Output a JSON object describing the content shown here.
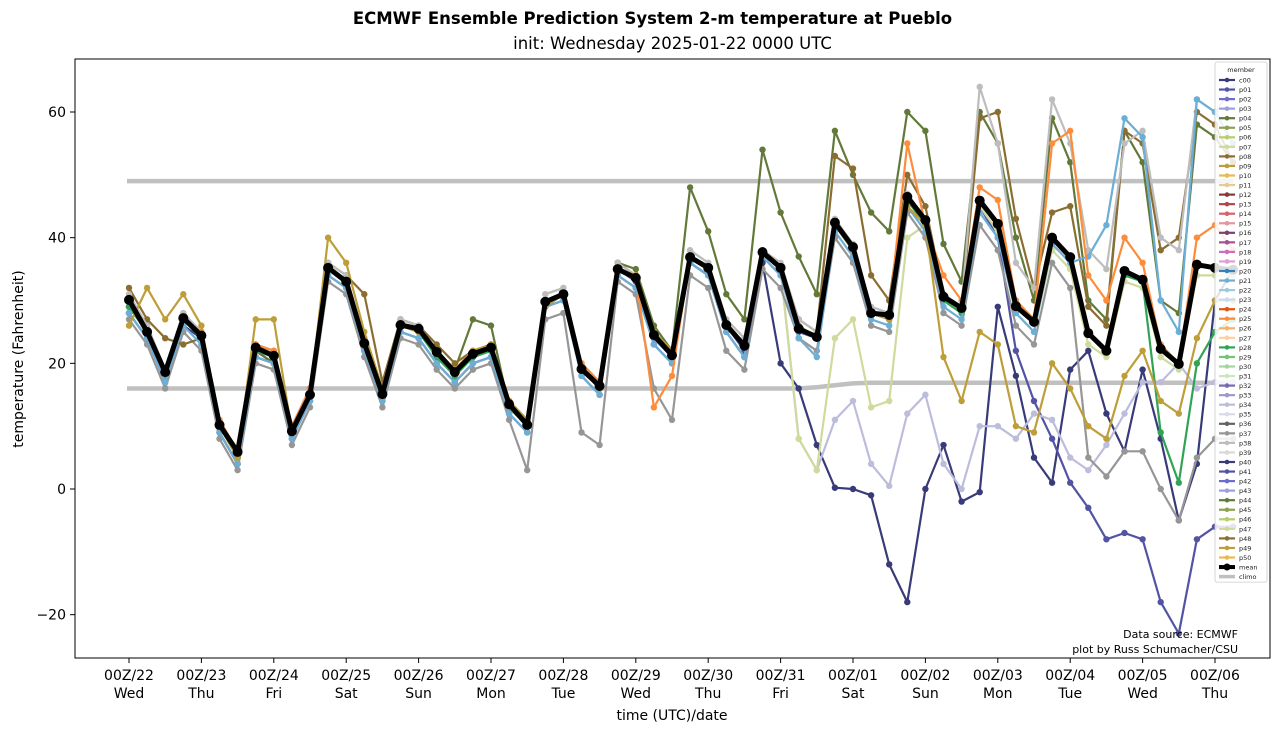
{
  "title": "ECMWF Ensemble Prediction System 2-m temperature at Pueblo",
  "subtitle": "init: Wednesday 2025-01-22 0000 UTC",
  "credits": [
    "Data source: ECMWF",
    "plot by Russ Schumacher/CSU"
  ],
  "chart_data": {
    "type": "line",
    "title": "ECMWF Ensemble Prediction System 2-m temperature at Pueblo",
    "subtitle": "init: Wednesday 2025-01-22 0000 UTC",
    "xlabel": "time (UTC)/date",
    "ylabel": "temperature (Fahrenheit)",
    "ylim": [
      -27,
      68.5
    ],
    "xlim_hours": [
      -38,
      383
    ],
    "time_step_hours": 6,
    "yticks": [
      -20,
      0,
      20,
      40,
      60
    ],
    "ytick_labels": [
      "−20",
      "0",
      "20",
      "40",
      "60"
    ],
    "xticks": [
      {
        "line1": "00Z/22",
        "line2": "Wed"
      },
      {
        "line1": "00Z/23",
        "line2": "Thu"
      },
      {
        "line1": "00Z/24",
        "line2": "Fri"
      },
      {
        "line1": "00Z/25",
        "line2": "Sat"
      },
      {
        "line1": "00Z/26",
        "line2": "Sun"
      },
      {
        "line1": "00Z/27",
        "line2": "Mon"
      },
      {
        "line1": "00Z/28",
        "line2": "Tue"
      },
      {
        "line1": "00Z/29",
        "line2": "Wed"
      },
      {
        "line1": "00Z/30",
        "line2": "Thu"
      },
      {
        "line1": "00Z/31",
        "line2": "Fri"
      },
      {
        "line1": "00Z/01",
        "line2": "Sat"
      },
      {
        "line1": "00Z/02",
        "line2": "Sun"
      },
      {
        "line1": "00Z/03",
        "line2": "Mon"
      },
      {
        "line1": "00Z/04",
        "line2": "Tue"
      },
      {
        "line1": "00Z/05",
        "line2": "Wed"
      },
      {
        "line1": "00Z/06",
        "line2": "Thu"
      }
    ],
    "grid": false,
    "legend": {
      "title": "member",
      "placement": "right",
      "entries": [
        "c00",
        "p01",
        "p02",
        "p03",
        "p04",
        "p05",
        "p06",
        "p07",
        "p08",
        "p09",
        "p10",
        "p11",
        "p12",
        "p13",
        "p14",
        "p15",
        "p16",
        "p17",
        "p18",
        "p19",
        "p20",
        "p21",
        "p22",
        "p23",
        "p24",
        "p25",
        "p26",
        "p27",
        "p28",
        "p29",
        "p30",
        "p31",
        "p32",
        "p33",
        "p34",
        "p35",
        "p36",
        "p37",
        "p38",
        "p39",
        "p40",
        "p41",
        "p42",
        "p43",
        "p44",
        "p45",
        "p46",
        "p47",
        "p48",
        "p49",
        "p50",
        "mean",
        "climo"
      ]
    },
    "member_colors": [
      "#393b79",
      "#5254a3",
      "#6b6ecf",
      "#9c9ede",
      "#637939",
      "#8ca252",
      "#b5cf6b",
      "#cedb9c",
      "#8c6d31",
      "#bd9e39",
      "#e7ba52",
      "#e7cb94",
      "#843c39",
      "#ad494a",
      "#d6616b",
      "#e7969c",
      "#7b4173",
      "#a55194",
      "#ce6dbd",
      "#de9ed6",
      "#3182bd",
      "#6baed6",
      "#9ecae1",
      "#c6dbef",
      "#e6550d",
      "#fd8d3c",
      "#fdae6b",
      "#fdd0a2",
      "#31a354",
      "#74c476",
      "#a1d99b",
      "#c7e9c0",
      "#756bb1",
      "#9e9ac8",
      "#bcbddc",
      "#dadaeb",
      "#636363",
      "#969696",
      "#bdbdbd",
      "#d9d9d9",
      "#393b79",
      "#5254a3",
      "#6b6ecf",
      "#9c9ede",
      "#637939",
      "#8ca252",
      "#b5cf6b",
      "#cedb9c",
      "#8c6d31",
      "#bd9e39",
      "#e7ba52"
    ],
    "mean_color": "#000000",
    "climo_color": "#c0c0c0",
    "series": [
      {
        "name": "mean",
        "values": [
          30.1,
          25.0,
          18.6,
          27.2,
          24.4,
          10.2,
          5.9,
          22.5,
          21.2,
          9.2,
          15.0,
          35.2,
          33.0,
          23.2,
          15.1,
          26.1,
          25.5,
          21.8,
          18.6,
          21.5,
          22.5,
          13.5,
          10.2,
          29.8,
          31.0,
          19.1,
          16.4,
          35.0,
          33.6,
          24.5,
          21.3,
          36.9,
          35.2,
          26.1,
          22.8,
          37.7,
          35.2,
          25.5,
          24.2,
          42.4,
          38.5,
          28.0,
          27.7,
          46.5,
          42.8,
          30.6,
          28.8,
          45.9,
          42.2,
          29.1,
          26.6,
          40.0,
          36.9,
          24.8,
          22.0,
          34.7,
          33.3,
          22.3,
          19.9,
          35.7,
          35.2,
          34.9
        ]
      },
      {
        "name": "climo_high",
        "values": [
          49.0,
          49.0,
          49.0,
          49.0,
          49.0,
          49.0,
          49.0,
          49.0,
          49.0,
          49.0,
          49.0,
          49.0,
          49.0,
          49.0,
          49.0,
          49.0,
          49.0,
          49.0,
          49.0,
          49.0,
          49.0,
          49.0,
          49.0,
          49.0,
          49.0,
          49.0,
          49.0,
          49.0,
          49.0,
          49.0,
          49.0,
          49.0,
          49.0,
          49.0,
          49.0,
          49.0,
          49.0,
          49.0,
          49.0,
          49.0,
          49.0,
          49.0,
          49.0,
          49.0,
          49.0,
          49.0,
          49.0,
          49.0,
          49.0,
          49.0,
          49.0,
          49.0,
          49.0,
          49.0,
          49.0,
          49.0,
          49.0,
          49.0,
          49.0,
          49.0,
          49.0,
          49.0
        ]
      },
      {
        "name": "climo_low",
        "values": [
          16.0,
          16.0,
          16.0,
          16.0,
          16.0,
          16.0,
          16.0,
          16.0,
          16.0,
          16.0,
          16.0,
          16.0,
          16.0,
          16.0,
          16.0,
          16.0,
          16.0,
          16.0,
          16.0,
          16.0,
          16.0,
          16.0,
          16.0,
          16.0,
          16.0,
          16.0,
          16.0,
          16.0,
          16.0,
          16.0,
          16.0,
          16.0,
          16.0,
          16.0,
          16.0,
          16.0,
          16.0,
          16.0,
          16.2,
          16.5,
          16.8,
          16.9,
          16.9,
          16.9,
          16.9,
          16.9,
          16.9,
          16.9,
          16.9,
          16.9,
          16.9,
          16.9,
          16.9,
          16.9,
          16.9,
          16.9,
          16.9,
          16.9,
          16.9,
          16.9,
          16.9,
          16.9
        ]
      },
      {
        "name": "c00",
        "values": [
          28,
          24,
          17,
          26,
          24,
          9,
          4,
          21,
          20,
          8,
          14,
          34,
          32,
          22,
          14,
          25,
          24,
          20,
          17,
          20,
          21,
          12,
          9,
          29,
          30,
          18,
          15,
          34,
          32,
          23,
          20,
          36,
          34,
          25,
          21,
          36,
          20,
          16,
          7,
          0.2,
          0,
          -1,
          -12,
          -18,
          0,
          7,
          -2,
          -0.5,
          29,
          18,
          5,
          1,
          19,
          22,
          12,
          6,
          19,
          8,
          -5,
          4,
          30,
          35
        ]
      },
      {
        "name": "p41",
        "values": [
          29,
          25,
          18,
          27,
          24,
          10,
          5,
          22,
          20,
          9,
          15,
          35,
          33,
          23,
          15,
          26,
          25,
          21,
          18,
          21,
          22,
          13,
          10,
          29,
          31,
          19,
          16,
          35,
          33,
          24,
          21,
          36,
          34,
          26,
          22,
          37,
          34,
          25,
          24,
          42,
          38,
          28,
          27,
          46,
          42,
          30,
          28,
          45,
          40,
          22,
          14,
          8,
          1,
          -3,
          -8,
          -7,
          -8,
          -18,
          -23,
          -8,
          -6,
          -6
        ]
      },
      {
        "name": "p34",
        "values": [
          30,
          26,
          19,
          27,
          25,
          11,
          6,
          23,
          22,
          10,
          16,
          35,
          33,
          24,
          16,
          26,
          25,
          22,
          19,
          22,
          23,
          14,
          11,
          30,
          31,
          20,
          17,
          35,
          34,
          25,
          22,
          37,
          35,
          26,
          23,
          38,
          35,
          8,
          3,
          11,
          14,
          4,
          0.5,
          12,
          15,
          4,
          0,
          10,
          10,
          8,
          12,
          11,
          5,
          3,
          7,
          12,
          17,
          17,
          20,
          16,
          17,
          17
        ]
      },
      {
        "name": "p07",
        "values": [
          31,
          26,
          19,
          28,
          25,
          11,
          6,
          23,
          21,
          10,
          15,
          36,
          34,
          24,
          16,
          27,
          26,
          22,
          19,
          22,
          23,
          14,
          11,
          31,
          32,
          20,
          17,
          36,
          34,
          25,
          22,
          38,
          36,
          27,
          24,
          38,
          35,
          8,
          3,
          24,
          27,
          13,
          14,
          40,
          42,
          30,
          28,
          45,
          41,
          28,
          25,
          38,
          35,
          23,
          21,
          33,
          32,
          21,
          19,
          34,
          34,
          34
        ]
      },
      {
        "name": "p04",
        "values": [
          29,
          25,
          18,
          27,
          24,
          10,
          5,
          22,
          20,
          9,
          15,
          35,
          33,
          23,
          15,
          26,
          25,
          22,
          19,
          27,
          26,
          13,
          10,
          30,
          31,
          19,
          16,
          36,
          35,
          26,
          22,
          48,
          41,
          31,
          27,
          54,
          44,
          37,
          31,
          57,
          50,
          44,
          41,
          60,
          57,
          39,
          33,
          60,
          55,
          40,
          30,
          59,
          52,
          30,
          27,
          57,
          52,
          30,
          28,
          58,
          56,
          52
        ]
      },
      {
        "name": "p37",
        "values": [
          27,
          23,
          16,
          25,
          22,
          8,
          3,
          20,
          19,
          7,
          13,
          33,
          31,
          21,
          13,
          24,
          23,
          19,
          16,
          19,
          20,
          11,
          3,
          27,
          28,
          9,
          7,
          33,
          31,
          16,
          11,
          34,
          32,
          22,
          19,
          35,
          32,
          24,
          22,
          40,
          36,
          26,
          25,
          44,
          40,
          28,
          26,
          42,
          38,
          26,
          23,
          36,
          32,
          5,
          2,
          6,
          6,
          0,
          -5,
          5,
          8,
          8
        ]
      },
      {
        "name": "p28",
        "values": [
          29,
          25,
          18,
          27,
          24,
          10,
          5,
          22,
          21,
          9,
          15,
          35,
          33,
          23,
          15,
          26,
          25,
          21,
          18,
          21,
          22,
          13,
          10,
          30,
          31,
          19,
          16,
          35,
          34,
          25,
          22,
          37,
          35,
          26,
          23,
          38,
          35,
          26,
          24,
          42,
          38,
          28,
          28,
          46,
          42,
          30,
          28,
          46,
          42,
          30,
          27,
          40,
          37,
          25,
          22,
          34,
          33,
          9,
          1,
          20,
          25,
          27
        ]
      },
      {
        "name": "p08",
        "values": [
          32,
          27,
          24,
          23,
          24,
          9,
          4,
          23,
          22,
          10,
          16,
          36,
          34,
          31,
          17,
          27,
          26,
          23,
          20,
          22,
          23,
          14,
          11,
          30,
          31,
          20,
          17,
          36,
          34,
          25,
          22,
          37,
          35,
          26,
          23,
          38,
          35,
          27,
          25,
          53,
          51,
          34,
          30,
          50,
          45,
          31,
          29,
          59,
          60,
          43,
          32,
          44,
          45,
          29,
          26,
          57,
          55,
          38,
          40,
          60,
          58,
          52
        ]
      },
      {
        "name": "p38",
        "values": [
          31,
          26,
          19,
          28,
          25,
          11,
          6,
          23,
          21,
          10,
          16,
          36,
          34,
          24,
          16,
          27,
          26,
          22,
          19,
          22,
          23,
          14,
          11,
          31,
          32,
          20,
          17,
          36,
          34,
          25,
          22,
          38,
          36,
          27,
          24,
          38,
          36,
          27,
          25,
          43,
          39,
          29,
          28,
          47,
          43,
          31,
          29,
          64,
          55,
          36,
          32,
          62,
          55,
          38,
          35,
          55,
          57,
          40,
          38,
          62,
          60,
          64
        ]
      },
      {
        "name": "p21",
        "values": [
          28,
          24,
          17,
          26,
          23,
          9,
          4,
          21,
          20,
          8,
          14,
          34,
          32,
          22,
          14,
          25,
          24,
          20,
          17,
          20,
          21,
          12,
          9,
          29,
          30,
          18,
          15,
          34,
          32,
          23,
          20,
          36,
          34,
          25,
          21,
          37,
          34,
          24,
          21,
          41,
          37,
          27,
          26,
          45,
          41,
          29,
          27,
          44,
          40,
          28,
          25,
          39,
          36,
          37,
          42,
          59,
          56,
          30,
          25,
          62,
          60,
          55
        ]
      },
      {
        "name": "p25",
        "values": [
          30,
          25,
          19,
          27,
          25,
          11,
          6,
          23,
          22,
          10,
          16,
          35,
          33,
          24,
          16,
          26,
          25,
          22,
          19,
          22,
          23,
          14,
          11,
          30,
          31,
          20,
          17,
          35,
          34,
          13,
          18,
          37,
          35,
          26,
          23,
          38,
          35,
          26,
          24,
          42,
          38,
          28,
          28,
          55,
          42,
          34,
          30,
          48,
          46,
          30,
          27,
          55,
          57,
          34,
          30,
          40,
          36,
          23,
          20,
          40,
          42,
          38
        ]
      },
      {
        "name": "p09",
        "values": [
          26,
          32,
          27,
          31,
          26,
          10,
          5,
          27,
          27,
          9,
          15,
          40,
          36,
          25,
          16,
          26,
          25,
          22,
          19,
          22,
          23,
          14,
          11,
          29,
          31,
          19,
          16,
          35,
          34,
          25,
          22,
          37,
          35,
          26,
          23,
          38,
          35,
          26,
          24,
          42,
          38,
          28,
          27,
          45,
          42,
          21,
          14,
          25,
          23,
          10,
          9,
          20,
          16,
          10,
          8,
          18,
          22,
          14,
          12,
          24,
          30,
          30
        ]
      }
    ]
  }
}
